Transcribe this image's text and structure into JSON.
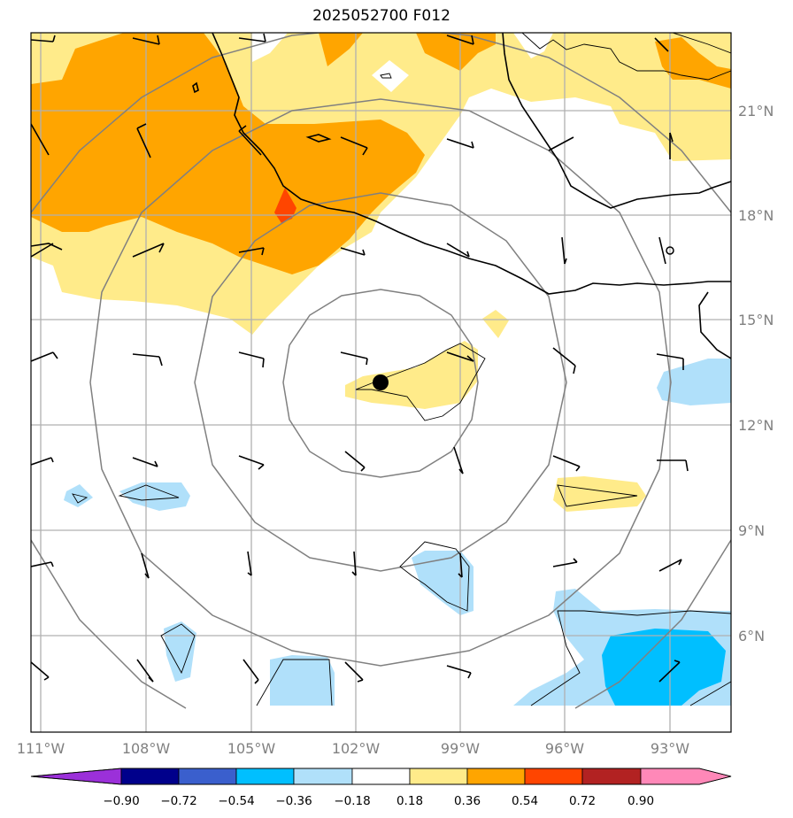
{
  "title": "2025052700 F012",
  "chart_data": {
    "type": "map",
    "lon_range": [
      -111.25,
      -91.75
    ],
    "lat_range": [
      3.3,
      23.3
    ],
    "lon_ticks": [
      -111,
      -108,
      -105,
      -102,
      -99,
      -96,
      -93
    ],
    "lat_ticks": [
      6,
      9,
      12,
      15,
      18,
      21
    ],
    "lon_tick_labels": [
      "111°W",
      "108°W",
      "105°W",
      "102°W",
      "99°W",
      "96°W",
      "93°W"
    ],
    "lat_tick_labels": [
      "6°N",
      "9°N",
      "12°N",
      "15°N",
      "18°N",
      "21°N"
    ],
    "grid": true,
    "storm_center": {
      "lon": -101.3,
      "lat": 13.2
    },
    "range_rings_deg": [
      3,
      5.5,
      8.3,
      11.1
    ],
    "colorbar": {
      "levels": [
        -0.9,
        -0.72,
        -0.54,
        -0.36,
        -0.18,
        0.18,
        0.36,
        0.54,
        0.72,
        0.9
      ],
      "labels": [
        "−0.90",
        "−0.72",
        "−0.54",
        "−0.36",
        "−0.18",
        "0.18",
        "0.36",
        "0.54",
        "0.72",
        "0.90"
      ],
      "colors": [
        "#9b30d9",
        "#00008b",
        "#3a5fcd",
        "#00bfff",
        "#b0e0fa",
        "#ffffff",
        "#ffeb8a",
        "#ffa500",
        "#ff4500",
        "#b22222",
        "#ff88b8"
      ],
      "extend": "both"
    }
  }
}
